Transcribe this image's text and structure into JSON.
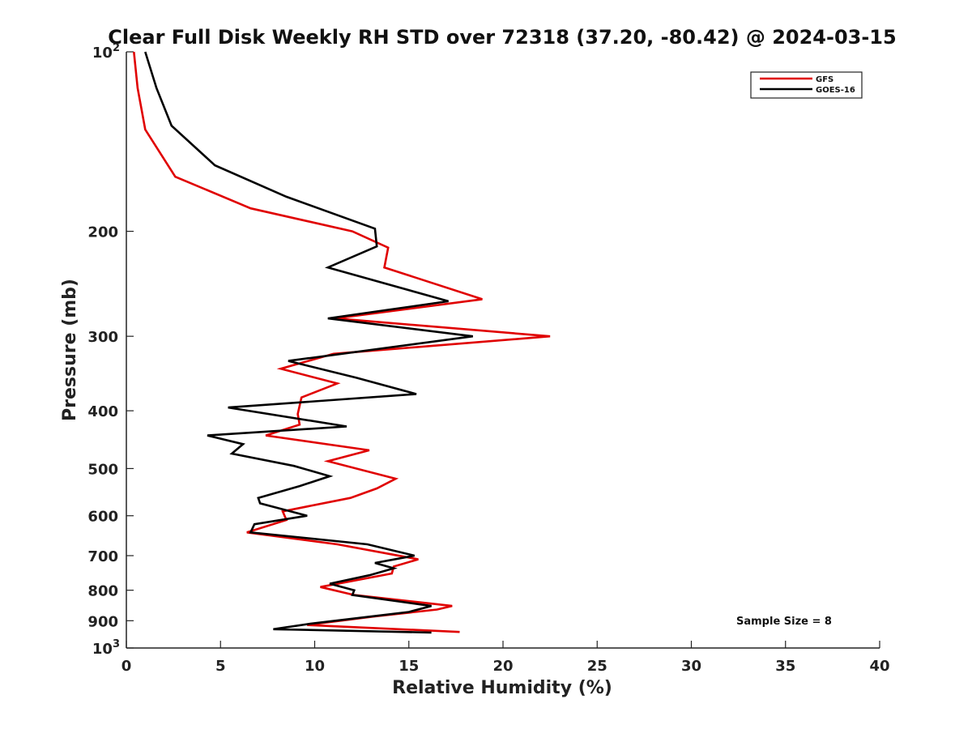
{
  "chart_data": {
    "type": "line",
    "title": "Clear Full Disk Weekly RH STD over 72318 (37.20, -80.42) @ 2024-03-15",
    "xlabel": "Relative Humidity (%)",
    "ylabel": "Pressure (mb)",
    "xlim": [
      0,
      40
    ],
    "ylim": [
      100,
      1000
    ],
    "y_scale": "log",
    "y_reversed": true,
    "x_ticks": [
      "0",
      "5",
      "10",
      "15",
      "20",
      "25",
      "30",
      "35",
      "40"
    ],
    "y_ticks": [
      {
        "value": 100,
        "base": "10",
        "exp": "2"
      },
      {
        "value": 200,
        "label": "200"
      },
      {
        "value": 300,
        "label": "300"
      },
      {
        "value": 400,
        "label": "400"
      },
      {
        "value": 500,
        "label": "500"
      },
      {
        "value": 600,
        "label": "600"
      },
      {
        "value": 700,
        "label": "700"
      },
      {
        "value": 800,
        "label": "800"
      },
      {
        "value": 900,
        "label": "900"
      },
      {
        "value": 1000,
        "base": "10",
        "exp": "3"
      }
    ],
    "legend_position": "top-right",
    "series": [
      {
        "name": "GFS",
        "color": "#e00000",
        "points": [
          [
            0.4,
            100
          ],
          [
            0.6,
            115
          ],
          [
            1.0,
            135
          ],
          [
            2.6,
            162
          ],
          [
            6.6,
            183
          ],
          [
            12.0,
            200
          ],
          [
            13.9,
            213
          ],
          [
            13.7,
            230
          ],
          [
            18.9,
            260
          ],
          [
            11.1,
            280
          ],
          [
            22.5,
            300
          ],
          [
            11.0,
            321
          ],
          [
            8.2,
            340
          ],
          [
            11.2,
            360
          ],
          [
            9.3,
            380
          ],
          [
            9.1,
            405
          ],
          [
            9.2,
            422
          ],
          [
            7.4,
            440
          ],
          [
            12.9,
            466
          ],
          [
            10.7,
            486
          ],
          [
            14.3,
            520
          ],
          [
            13.3,
            540
          ],
          [
            11.9,
            560
          ],
          [
            8.3,
            590
          ],
          [
            8.5,
            610
          ],
          [
            6.4,
            640
          ],
          [
            11.2,
            670
          ],
          [
            15.5,
            710
          ],
          [
            14.2,
            730
          ],
          [
            14.1,
            750
          ],
          [
            10.3,
            790
          ],
          [
            12.1,
            815
          ],
          [
            17.3,
            850
          ],
          [
            16.5,
            862
          ],
          [
            13.2,
            885
          ],
          [
            9.6,
            915
          ],
          [
            17.7,
            940
          ]
        ]
      },
      {
        "name": "GOES-16",
        "color": "#000000",
        "points": [
          [
            1.0,
            100
          ],
          [
            1.6,
            115
          ],
          [
            2.4,
            133
          ],
          [
            4.7,
            155
          ],
          [
            8.5,
            175
          ],
          [
            13.2,
            198
          ],
          [
            13.3,
            212
          ],
          [
            10.7,
            230
          ],
          [
            17.1,
            262
          ],
          [
            10.7,
            280
          ],
          [
            18.4,
            300
          ],
          [
            8.6,
            330
          ],
          [
            12.2,
            352
          ],
          [
            15.4,
            375
          ],
          [
            5.4,
            395
          ],
          [
            11.7,
            425
          ],
          [
            4.3,
            440
          ],
          [
            6.2,
            455
          ],
          [
            5.6,
            472
          ],
          [
            8.9,
            495
          ],
          [
            10.8,
            515
          ],
          [
            9.2,
            535
          ],
          [
            7.0,
            560
          ],
          [
            7.1,
            572
          ],
          [
            9.6,
            600
          ],
          [
            6.8,
            620
          ],
          [
            6.6,
            640
          ],
          [
            12.8,
            670
          ],
          [
            15.3,
            700
          ],
          [
            13.2,
            720
          ],
          [
            14.2,
            735
          ],
          [
            12.9,
            755
          ],
          [
            10.8,
            780
          ],
          [
            12.1,
            800
          ],
          [
            12.0,
            815
          ],
          [
            16.2,
            850
          ],
          [
            15.0,
            870
          ],
          [
            9.8,
            910
          ],
          [
            7.8,
            930
          ],
          [
            16.2,
            942
          ]
        ]
      }
    ],
    "legend": [
      {
        "label": "GFS",
        "color": "#e00000"
      },
      {
        "label": "GOES-16",
        "color": "#000000"
      }
    ],
    "annotation": "Sample Size = 8"
  }
}
